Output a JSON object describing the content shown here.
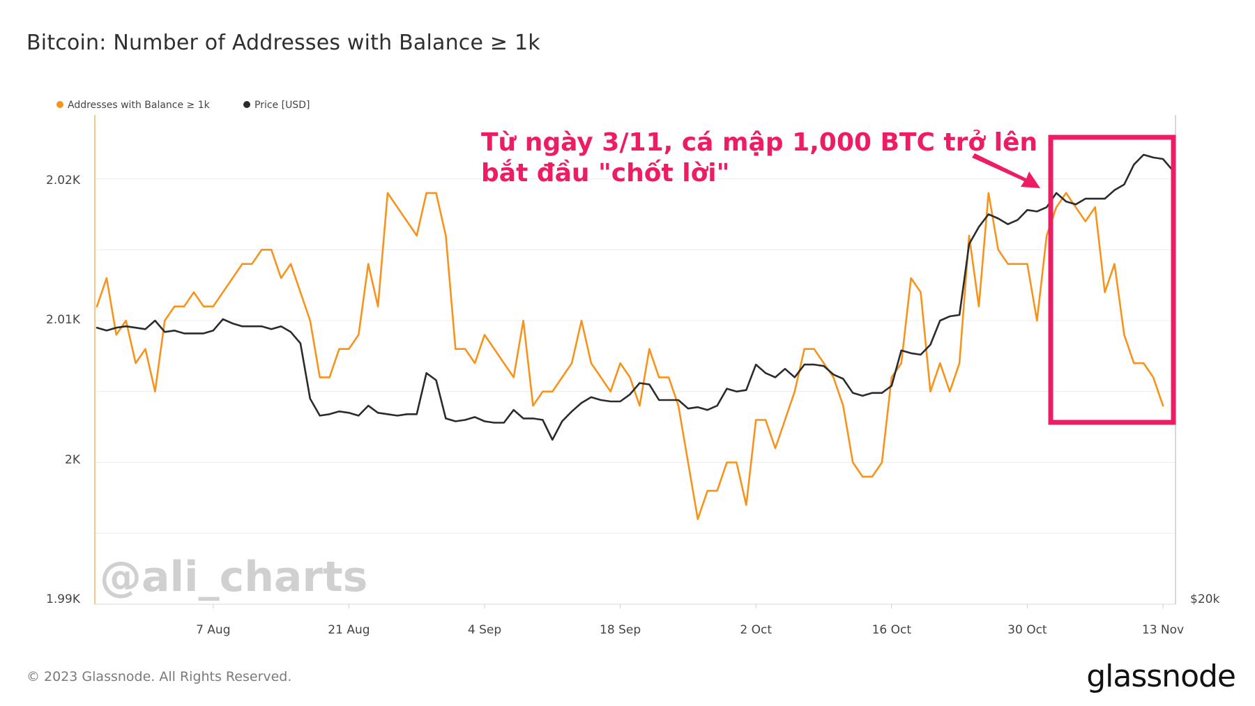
{
  "chart_data": {
    "type": "line",
    "title": "Bitcoin: Number of Addresses with Balance ≥ 1k",
    "x_tick_labels": [
      "7 Aug",
      "21 Aug",
      "4 Sep",
      "18 Sep",
      "2 Oct",
      "16 Oct",
      "30 Oct",
      "13 Nov"
    ],
    "y_left": {
      "ticks": [
        "1.99K",
        "2K",
        "2.01K",
        "2.02K"
      ],
      "range": [
        1990,
        2024.5
      ]
    },
    "y_right": {
      "ticks": [
        "$20k"
      ]
    },
    "grid": true,
    "legend_position": "top-left",
    "x_start": "2023-07-26",
    "x_end": "2023-11-13",
    "series": [
      {
        "name": "Addresses with Balance ≥ 1k",
        "color": "#f7931a",
        "axis": "left",
        "values": [
          2011,
          2013,
          2009,
          2010,
          2007,
          2008,
          2005,
          2010,
          2011,
          2011,
          2012,
          2011,
          2011,
          2012,
          2013,
          2014,
          2014,
          2015,
          2015,
          2013,
          2014,
          2012,
          2010,
          2006,
          2006,
          2008,
          2008,
          2009,
          2014,
          2011,
          2019,
          2018,
          2017,
          2016,
          2019,
          2019,
          2016,
          2008,
          2008,
          2007,
          2009,
          2008,
          2007,
          2006,
          2010,
          2004,
          2005,
          2005,
          2006,
          2007,
          2010,
          2007,
          2006,
          2005,
          2007,
          2006,
          2004,
          2008,
          2006,
          2006,
          2004,
          2000,
          1996,
          1998,
          1998,
          2000,
          2000,
          1997,
          2003,
          2003,
          2001,
          2003,
          2005,
          2008,
          2008,
          2007,
          2006,
          2004,
          2000,
          1999,
          1999,
          2000,
          2006,
          2007,
          2013,
          2012,
          2005,
          2007,
          2005,
          2007,
          2016,
          2011,
          2019,
          2015,
          2014,
          2014,
          2014,
          2010,
          2016,
          2018,
          2019,
          2018,
          2017,
          2018,
          2012,
          2014,
          2009,
          2007,
          2007,
          2006,
          2004
        ]
      },
      {
        "name": "Price [USD]",
        "color": "#2b2b2b",
        "axis": "right",
        "values": [
          2009.5,
          2009.3,
          2009.5,
          2009.6,
          2009.5,
          2009.4,
          2010.0,
          2009.2,
          2009.3,
          2009.1,
          2009.1,
          2009.1,
          2009.3,
          2010.1,
          2009.8,
          2009.6,
          2009.6,
          2009.6,
          2009.4,
          2009.6,
          2009.2,
          2008.4,
          2004.5,
          2003.3,
          2003.4,
          2003.6,
          2003.5,
          2003.3,
          2004.0,
          2003.5,
          2003.4,
          2003.3,
          2003.4,
          2003.4,
          2006.3,
          2005.8,
          2003.1,
          2002.9,
          2003.0,
          2003.2,
          2002.9,
          2002.8,
          2002.8,
          2003.7,
          2003.1,
          2003.1,
          2003.0,
          2001.6,
          2002.9,
          2003.6,
          2004.2,
          2004.6,
          2004.4,
          2004.3,
          2004.3,
          2004.8,
          2005.6,
          2005.5,
          2004.4,
          2004.4,
          2004.4,
          2003.8,
          2003.9,
          2003.7,
          2004.0,
          2005.2,
          2005.0,
          2005.1,
          2006.9,
          2006.3,
          2006.0,
          2006.6,
          2006.0,
          2006.9,
          2006.9,
          2006.8,
          2006.2,
          2005.9,
          2004.9,
          2004.7,
          2004.9,
          2004.9,
          2005.4,
          2007.9,
          2007.7,
          2007.6,
          2008.3,
          2010.0,
          2010.3,
          2010.4,
          2015.4,
          2016.6,
          2017.5,
          2017.2,
          2016.8,
          2017.1,
          2017.8,
          2017.7,
          2018.0,
          2019.0,
          2018.4,
          2018.2,
          2018.6,
          2018.6,
          2018.6,
          2019.2,
          2019.6,
          2021.0,
          2021.7,
          2021.5,
          2021.4,
          2020.6
        ]
      }
    ],
    "annotations": {
      "callout_line_1": "Từ ngày 3/11, cá mập 1,000 BTC trở lên",
      "callout_line_2": "bắt đầu \"chốt lời\"",
      "highlight_color": "#ee1c63",
      "watermark": "@ali_charts"
    }
  },
  "footer": {
    "copyright": "© 2023 Glassnode. All Rights Reserved.",
    "logo": "glassnode"
  }
}
